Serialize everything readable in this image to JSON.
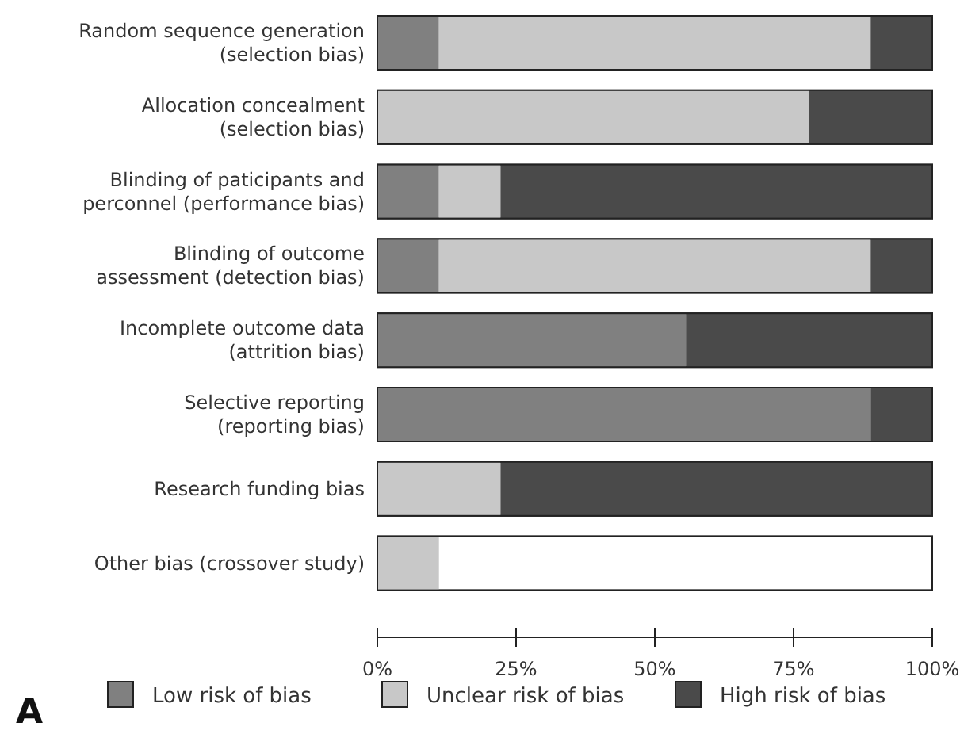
{
  "chart_data": {
    "type": "bar",
    "orientation": "horizontal",
    "stacked": true,
    "categories": [
      "Random sequence generation (selection bias)",
      "Allocation concealment (selection bias)",
      "Blinding of paticipants and perconnel (performance bias)",
      "Blinding of outcome assessment (detection bias)",
      "Incomplete outcome data (attrition bias)",
      "Selective reporting (reporting bias)",
      "Research funding bias",
      "Other bias (crossover study)"
    ],
    "series": [
      {
        "name": "Low risk of bias",
        "color": "#808080",
        "values": [
          11.1,
          0,
          11.1,
          11.1,
          55.6,
          88.9,
          0,
          0
        ]
      },
      {
        "name": "Unclear risk of bias",
        "color": "#c8c8c8",
        "values": [
          77.8,
          77.8,
          11.1,
          77.8,
          0,
          0,
          22.2,
          11.1
        ]
      },
      {
        "name": "High risk of bias",
        "color": "#4a4a4a",
        "values": [
          11.1,
          22.2,
          77.8,
          11.1,
          44.4,
          11.1,
          77.8,
          0
        ]
      }
    ],
    "xlim": [
      0,
      100
    ],
    "xticks": [
      {
        "value": 0,
        "label": "0%"
      },
      {
        "value": 25,
        "label": "25%"
      },
      {
        "value": 50,
        "label": "50%"
      },
      {
        "value": 75,
        "label": "75%"
      },
      {
        "value": 100,
        "label": "100%"
      }
    ],
    "grid": false,
    "legend": "bottom",
    "annotations": [
      "A"
    ]
  }
}
